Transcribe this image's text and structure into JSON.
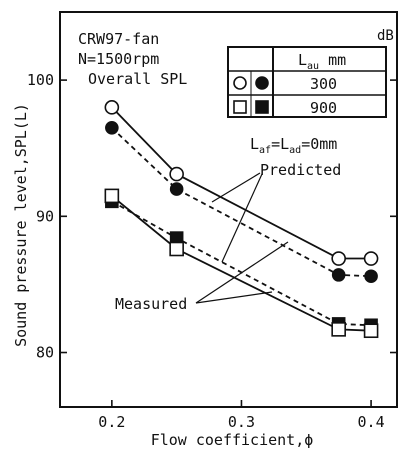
{
  "chart_data": {
    "type": "line",
    "xlabel": "Flow coefficient,ϕ",
    "ylabel": "Sound pressure level,SPL(L)",
    "unit_label": "dB",
    "xlim": [
      0.16,
      0.42
    ],
    "ylim": [
      76,
      105
    ],
    "xticks": [
      0.2,
      0.3,
      0.4
    ],
    "xtick_labels": [
      "0.2",
      "0.3",
      "0.4"
    ],
    "yticks": [
      80,
      90,
      100
    ],
    "ytick_labels": [
      "80",
      "90",
      "100"
    ],
    "info_lines": [
      "CRW97-fan",
      "N=1500rpm",
      "Overall SPL"
    ],
    "legend": {
      "placement": "top-right",
      "header": "Lau mm",
      "rows": [
        {
          "label": "300",
          "markers": [
            "open-circle",
            "filled-circle"
          ]
        },
        {
          "label": "900",
          "markers": [
            "open-square",
            "filled-square"
          ]
        }
      ]
    },
    "condition_label": "Laf=Lad=0mm",
    "annotations": [
      "Predicted",
      "Measured"
    ],
    "series": [
      {
        "key": "p300",
        "group": "Predicted",
        "Lau": "300",
        "line": "dashed",
        "marker": "filled-circle",
        "x": [
          0.2,
          0.25,
          0.375,
          0.4
        ],
        "y": [
          96.5,
          92.0,
          85.7,
          85.6
        ]
      },
      {
        "key": "m300",
        "group": "Measured",
        "Lau": "300",
        "line": "solid",
        "marker": "open-circle",
        "x": [
          0.2,
          0.25,
          0.375,
          0.4
        ],
        "y": [
          98.0,
          93.1,
          86.9,
          86.9
        ]
      },
      {
        "key": "p900",
        "group": "Predicted",
        "Lau": "900",
        "line": "dashed",
        "marker": "filled-square",
        "x": [
          0.2,
          0.25,
          0.375,
          0.4
        ],
        "y": [
          91.1,
          88.4,
          82.1,
          82.0
        ]
      },
      {
        "key": "m900",
        "group": "Measured",
        "Lau": "900",
        "line": "solid",
        "marker": "open-square",
        "x": [
          0.2,
          0.25,
          0.375,
          0.4
        ],
        "y": [
          91.5,
          87.6,
          81.7,
          81.6
        ]
      }
    ]
  }
}
